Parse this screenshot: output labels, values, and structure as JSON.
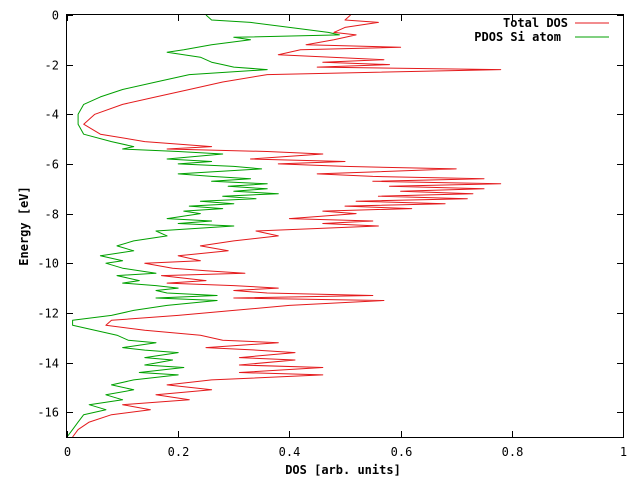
{
  "chart_data": {
    "type": "line",
    "title": "",
    "xlabel": "DOS [arb. units]",
    "ylabel": "Energy [eV]",
    "xlim": [
      0,
      1
    ],
    "ylim": [
      -17,
      0
    ],
    "xticks": [
      0,
      0.2,
      0.4,
      0.6,
      0.8,
      1
    ],
    "xtick_labels": [
      "0",
      "0.2",
      "0.4",
      "0.6",
      "0.8",
      "1"
    ],
    "yticks": [
      0,
      -2,
      -4,
      -6,
      -8,
      -10,
      -12,
      -14,
      -16
    ],
    "ytick_labels": [
      "0",
      "-2",
      "-4",
      "-6",
      "-8",
      "-10",
      "-12",
      "-14",
      "-16"
    ],
    "grid": false,
    "legend_position": "top-right",
    "orientation": "vertical",
    "series": [
      {
        "name": "Total DOS",
        "color": "#e41a1c",
        "points": [
          [
            0.51,
            0.0
          ],
          [
            0.5,
            -0.2
          ],
          [
            0.56,
            -0.3
          ],
          [
            0.5,
            -0.5
          ],
          [
            0.48,
            -0.7
          ],
          [
            0.52,
            -0.8
          ],
          [
            0.48,
            -1.0
          ],
          [
            0.43,
            -1.2
          ],
          [
            0.6,
            -1.3
          ],
          [
            0.42,
            -1.4
          ],
          [
            0.38,
            -1.6
          ],
          [
            0.57,
            -1.8
          ],
          [
            0.46,
            -1.9
          ],
          [
            0.58,
            -2.0
          ],
          [
            0.45,
            -2.1
          ],
          [
            0.78,
            -2.2
          ],
          [
            0.36,
            -2.4
          ],
          [
            0.28,
            -2.7
          ],
          [
            0.22,
            -3.0
          ],
          [
            0.16,
            -3.3
          ],
          [
            0.1,
            -3.6
          ],
          [
            0.05,
            -4.0
          ],
          [
            0.03,
            -4.4
          ],
          [
            0.06,
            -4.8
          ],
          [
            0.14,
            -5.1
          ],
          [
            0.26,
            -5.3
          ],
          [
            0.18,
            -5.4
          ],
          [
            0.36,
            -5.5
          ],
          [
            0.46,
            -5.6
          ],
          [
            0.33,
            -5.8
          ],
          [
            0.5,
            -5.9
          ],
          [
            0.38,
            -6.0
          ],
          [
            0.5,
            -6.1
          ],
          [
            0.7,
            -6.2
          ],
          [
            0.45,
            -6.4
          ],
          [
            0.55,
            -6.5
          ],
          [
            0.75,
            -6.6
          ],
          [
            0.55,
            -6.7
          ],
          [
            0.78,
            -6.8
          ],
          [
            0.58,
            -6.9
          ],
          [
            0.75,
            -7.0
          ],
          [
            0.6,
            -7.1
          ],
          [
            0.73,
            -7.2
          ],
          [
            0.56,
            -7.3
          ],
          [
            0.72,
            -7.4
          ],
          [
            0.52,
            -7.5
          ],
          [
            0.68,
            -7.6
          ],
          [
            0.5,
            -7.7
          ],
          [
            0.62,
            -7.8
          ],
          [
            0.46,
            -7.9
          ],
          [
            0.52,
            -8.0
          ],
          [
            0.4,
            -8.2
          ],
          [
            0.55,
            -8.3
          ],
          [
            0.46,
            -8.4
          ],
          [
            0.56,
            -8.5
          ],
          [
            0.34,
            -8.7
          ],
          [
            0.38,
            -8.9
          ],
          [
            0.3,
            -9.1
          ],
          [
            0.24,
            -9.3
          ],
          [
            0.29,
            -9.5
          ],
          [
            0.2,
            -9.7
          ],
          [
            0.24,
            -9.9
          ],
          [
            0.14,
            -10.0
          ],
          [
            0.19,
            -10.2
          ],
          [
            0.25,
            -10.3
          ],
          [
            0.32,
            -10.4
          ],
          [
            0.17,
            -10.5
          ],
          [
            0.25,
            -10.7
          ],
          [
            0.18,
            -10.8
          ],
          [
            0.3,
            -10.9
          ],
          [
            0.38,
            -11.0
          ],
          [
            0.3,
            -11.1
          ],
          [
            0.36,
            -11.2
          ],
          [
            0.55,
            -11.3
          ],
          [
            0.3,
            -11.4
          ],
          [
            0.57,
            -11.5
          ],
          [
            0.4,
            -11.7
          ],
          [
            0.3,
            -11.9
          ],
          [
            0.2,
            -12.1
          ],
          [
            0.08,
            -12.3
          ],
          [
            0.07,
            -12.5
          ],
          [
            0.14,
            -12.7
          ],
          [
            0.24,
            -12.9
          ],
          [
            0.28,
            -13.1
          ],
          [
            0.38,
            -13.2
          ],
          [
            0.25,
            -13.4
          ],
          [
            0.34,
            -13.5
          ],
          [
            0.41,
            -13.6
          ],
          [
            0.31,
            -13.8
          ],
          [
            0.41,
            -13.9
          ],
          [
            0.31,
            -14.1
          ],
          [
            0.46,
            -14.2
          ],
          [
            0.31,
            -14.4
          ],
          [
            0.46,
            -14.5
          ],
          [
            0.26,
            -14.7
          ],
          [
            0.18,
            -14.9
          ],
          [
            0.26,
            -15.1
          ],
          [
            0.16,
            -15.3
          ],
          [
            0.22,
            -15.5
          ],
          [
            0.1,
            -15.7
          ],
          [
            0.15,
            -15.9
          ],
          [
            0.08,
            -16.1
          ],
          [
            0.04,
            -16.4
          ],
          [
            0.02,
            -16.7
          ],
          [
            0.01,
            -17.0
          ]
        ]
      },
      {
        "name": "PDOS Si atom",
        "color": "#00a000",
        "points": [
          [
            0.25,
            0.0
          ],
          [
            0.26,
            -0.2
          ],
          [
            0.33,
            -0.3
          ],
          [
            0.4,
            -0.5
          ],
          [
            0.47,
            -0.7
          ],
          [
            0.49,
            -0.8
          ],
          [
            0.3,
            -0.9
          ],
          [
            0.33,
            -1.0
          ],
          [
            0.26,
            -1.2
          ],
          [
            0.21,
            -1.4
          ],
          [
            0.18,
            -1.5
          ],
          [
            0.24,
            -1.7
          ],
          [
            0.26,
            -1.9
          ],
          [
            0.28,
            -2.0
          ],
          [
            0.3,
            -2.1
          ],
          [
            0.36,
            -2.2
          ],
          [
            0.22,
            -2.4
          ],
          [
            0.16,
            -2.7
          ],
          [
            0.1,
            -3.0
          ],
          [
            0.06,
            -3.3
          ],
          [
            0.03,
            -3.6
          ],
          [
            0.02,
            -4.0
          ],
          [
            0.02,
            -4.4
          ],
          [
            0.03,
            -4.8
          ],
          [
            0.08,
            -5.1
          ],
          [
            0.12,
            -5.3
          ],
          [
            0.1,
            -5.4
          ],
          [
            0.2,
            -5.5
          ],
          [
            0.28,
            -5.6
          ],
          [
            0.18,
            -5.8
          ],
          [
            0.26,
            -5.9
          ],
          [
            0.2,
            -6.0
          ],
          [
            0.3,
            -6.1
          ],
          [
            0.35,
            -6.2
          ],
          [
            0.2,
            -6.4
          ],
          [
            0.26,
            -6.5
          ],
          [
            0.33,
            -6.6
          ],
          [
            0.26,
            -6.7
          ],
          [
            0.36,
            -6.8
          ],
          [
            0.29,
            -6.9
          ],
          [
            0.36,
            -7.0
          ],
          [
            0.3,
            -7.1
          ],
          [
            0.38,
            -7.2
          ],
          [
            0.28,
            -7.3
          ],
          [
            0.34,
            -7.4
          ],
          [
            0.24,
            -7.5
          ],
          [
            0.3,
            -7.6
          ],
          [
            0.22,
            -7.7
          ],
          [
            0.28,
            -7.8
          ],
          [
            0.21,
            -7.9
          ],
          [
            0.24,
            -8.0
          ],
          [
            0.18,
            -8.2
          ],
          [
            0.26,
            -8.3
          ],
          [
            0.2,
            -8.4
          ],
          [
            0.3,
            -8.5
          ],
          [
            0.16,
            -8.7
          ],
          [
            0.18,
            -8.9
          ],
          [
            0.12,
            -9.1
          ],
          [
            0.09,
            -9.3
          ],
          [
            0.12,
            -9.5
          ],
          [
            0.06,
            -9.7
          ],
          [
            0.1,
            -9.9
          ],
          [
            0.07,
            -10.0
          ],
          [
            0.1,
            -10.2
          ],
          [
            0.13,
            -10.3
          ],
          [
            0.16,
            -10.4
          ],
          [
            0.09,
            -10.5
          ],
          [
            0.13,
            -10.7
          ],
          [
            0.1,
            -10.8
          ],
          [
            0.16,
            -10.9
          ],
          [
            0.2,
            -11.0
          ],
          [
            0.16,
            -11.1
          ],
          [
            0.18,
            -11.2
          ],
          [
            0.27,
            -11.3
          ],
          [
            0.16,
            -11.4
          ],
          [
            0.27,
            -11.5
          ],
          [
            0.18,
            -11.7
          ],
          [
            0.12,
            -11.9
          ],
          [
            0.08,
            -12.1
          ],
          [
            0.01,
            -12.3
          ],
          [
            0.01,
            -12.5
          ],
          [
            0.05,
            -12.7
          ],
          [
            0.09,
            -12.9
          ],
          [
            0.11,
            -13.1
          ],
          [
            0.16,
            -13.2
          ],
          [
            0.1,
            -13.4
          ],
          [
            0.14,
            -13.5
          ],
          [
            0.2,
            -13.6
          ],
          [
            0.14,
            -13.8
          ],
          [
            0.19,
            -13.9
          ],
          [
            0.14,
            -14.1
          ],
          [
            0.21,
            -14.2
          ],
          [
            0.13,
            -14.4
          ],
          [
            0.2,
            -14.5
          ],
          [
            0.12,
            -14.7
          ],
          [
            0.08,
            -14.9
          ],
          [
            0.12,
            -15.1
          ],
          [
            0.07,
            -15.3
          ],
          [
            0.1,
            -15.5
          ],
          [
            0.04,
            -15.7
          ],
          [
            0.07,
            -15.9
          ],
          [
            0.03,
            -16.1
          ],
          [
            0.02,
            -16.4
          ],
          [
            0.01,
            -16.7
          ],
          [
            0.0,
            -17.0
          ]
        ]
      }
    ]
  }
}
